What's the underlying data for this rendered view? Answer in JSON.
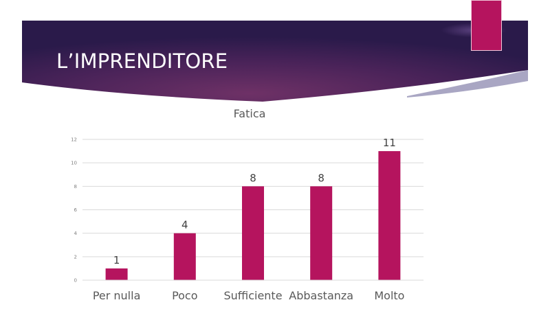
{
  "slide": {
    "title": "L’IMPRENDITORE"
  },
  "colors": {
    "bar": "#b5145e",
    "banner_dark": "#2d1b4f",
    "banner_mid": "#5b2a66",
    "tag": "#b5145e"
  },
  "chart_data": {
    "type": "bar",
    "title": "Fatica",
    "categories": [
      "Per nulla",
      "Poco",
      "Sufficiente",
      "Abbastanza",
      "Molto"
    ],
    "values": [
      1,
      4,
      8,
      8,
      11
    ],
    "data_labels": [
      "1",
      "4",
      "8",
      "8",
      "11"
    ],
    "yticks": [
      "0",
      "2",
      "4",
      "6",
      "8",
      "10",
      "12"
    ],
    "ylim": [
      0,
      12
    ],
    "grid": true,
    "legend": "none"
  }
}
